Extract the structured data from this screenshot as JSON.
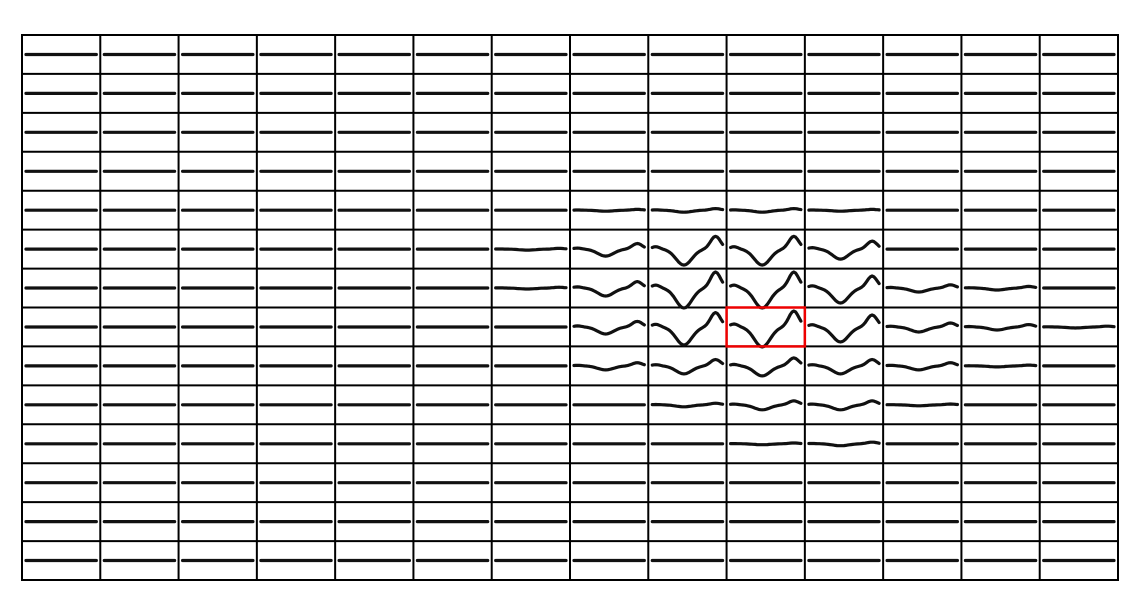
{
  "amplitudes": [
    [
      0,
      0,
      0,
      0,
      0,
      0,
      0,
      0,
      0,
      0,
      0,
      0,
      0,
      0
    ],
    [
      0,
      0,
      0,
      0,
      0,
      0,
      0,
      0,
      0,
      0,
      0,
      0,
      0,
      0
    ],
    [
      0,
      0,
      0,
      0,
      0,
      0,
      0,
      0,
      0,
      0,
      0,
      0,
      0,
      0
    ],
    [
      0,
      0,
      0,
      0,
      0,
      0,
      0,
      0,
      0,
      0,
      0,
      0,
      0,
      0
    ],
    [
      0,
      0,
      0,
      0,
      0,
      0,
      0,
      0.05,
      0.1,
      0.1,
      0.05,
      0,
      0,
      0
    ],
    [
      0,
      0,
      0,
      0,
      0,
      0,
      0.05,
      0.35,
      0.8,
      0.8,
      0.5,
      0,
      0,
      0
    ],
    [
      0,
      0,
      0,
      0,
      0,
      0,
      0.05,
      0.4,
      1,
      1,
      0.75,
      0.2,
      0.1,
      0
    ],
    [
      0,
      0,
      0,
      0,
      0,
      0,
      0,
      0.35,
      0.9,
      1,
      0.75,
      0.25,
      0.15,
      0.05
    ],
    [
      0,
      0,
      0,
      0,
      0,
      0,
      0,
      0.2,
      0.4,
      0.5,
      0.4,
      0.2,
      0.05,
      0
    ],
    [
      0,
      0,
      0,
      0,
      0,
      0,
      0,
      0,
      0.1,
      0.25,
      0.25,
      0.05,
      0,
      0
    ],
    [
      0,
      0,
      0,
      0,
      0,
      0,
      0,
      0,
      0,
      0.05,
      0.1,
      0,
      0,
      0
    ],
    [
      0,
      0,
      0,
      0,
      0,
      0,
      0,
      0,
      0,
      0,
      0,
      0,
      0,
      0
    ],
    [
      0,
      0,
      0,
      0,
      0,
      0,
      0,
      0,
      0,
      0,
      0,
      0,
      0,
      0
    ],
    [
      0,
      0,
      0,
      0,
      0,
      0,
      0,
      0,
      0,
      0,
      0,
      0,
      0,
      0
    ]
  ],
  "highlighted": {
    "row": 7,
    "column": 9
  }
}
